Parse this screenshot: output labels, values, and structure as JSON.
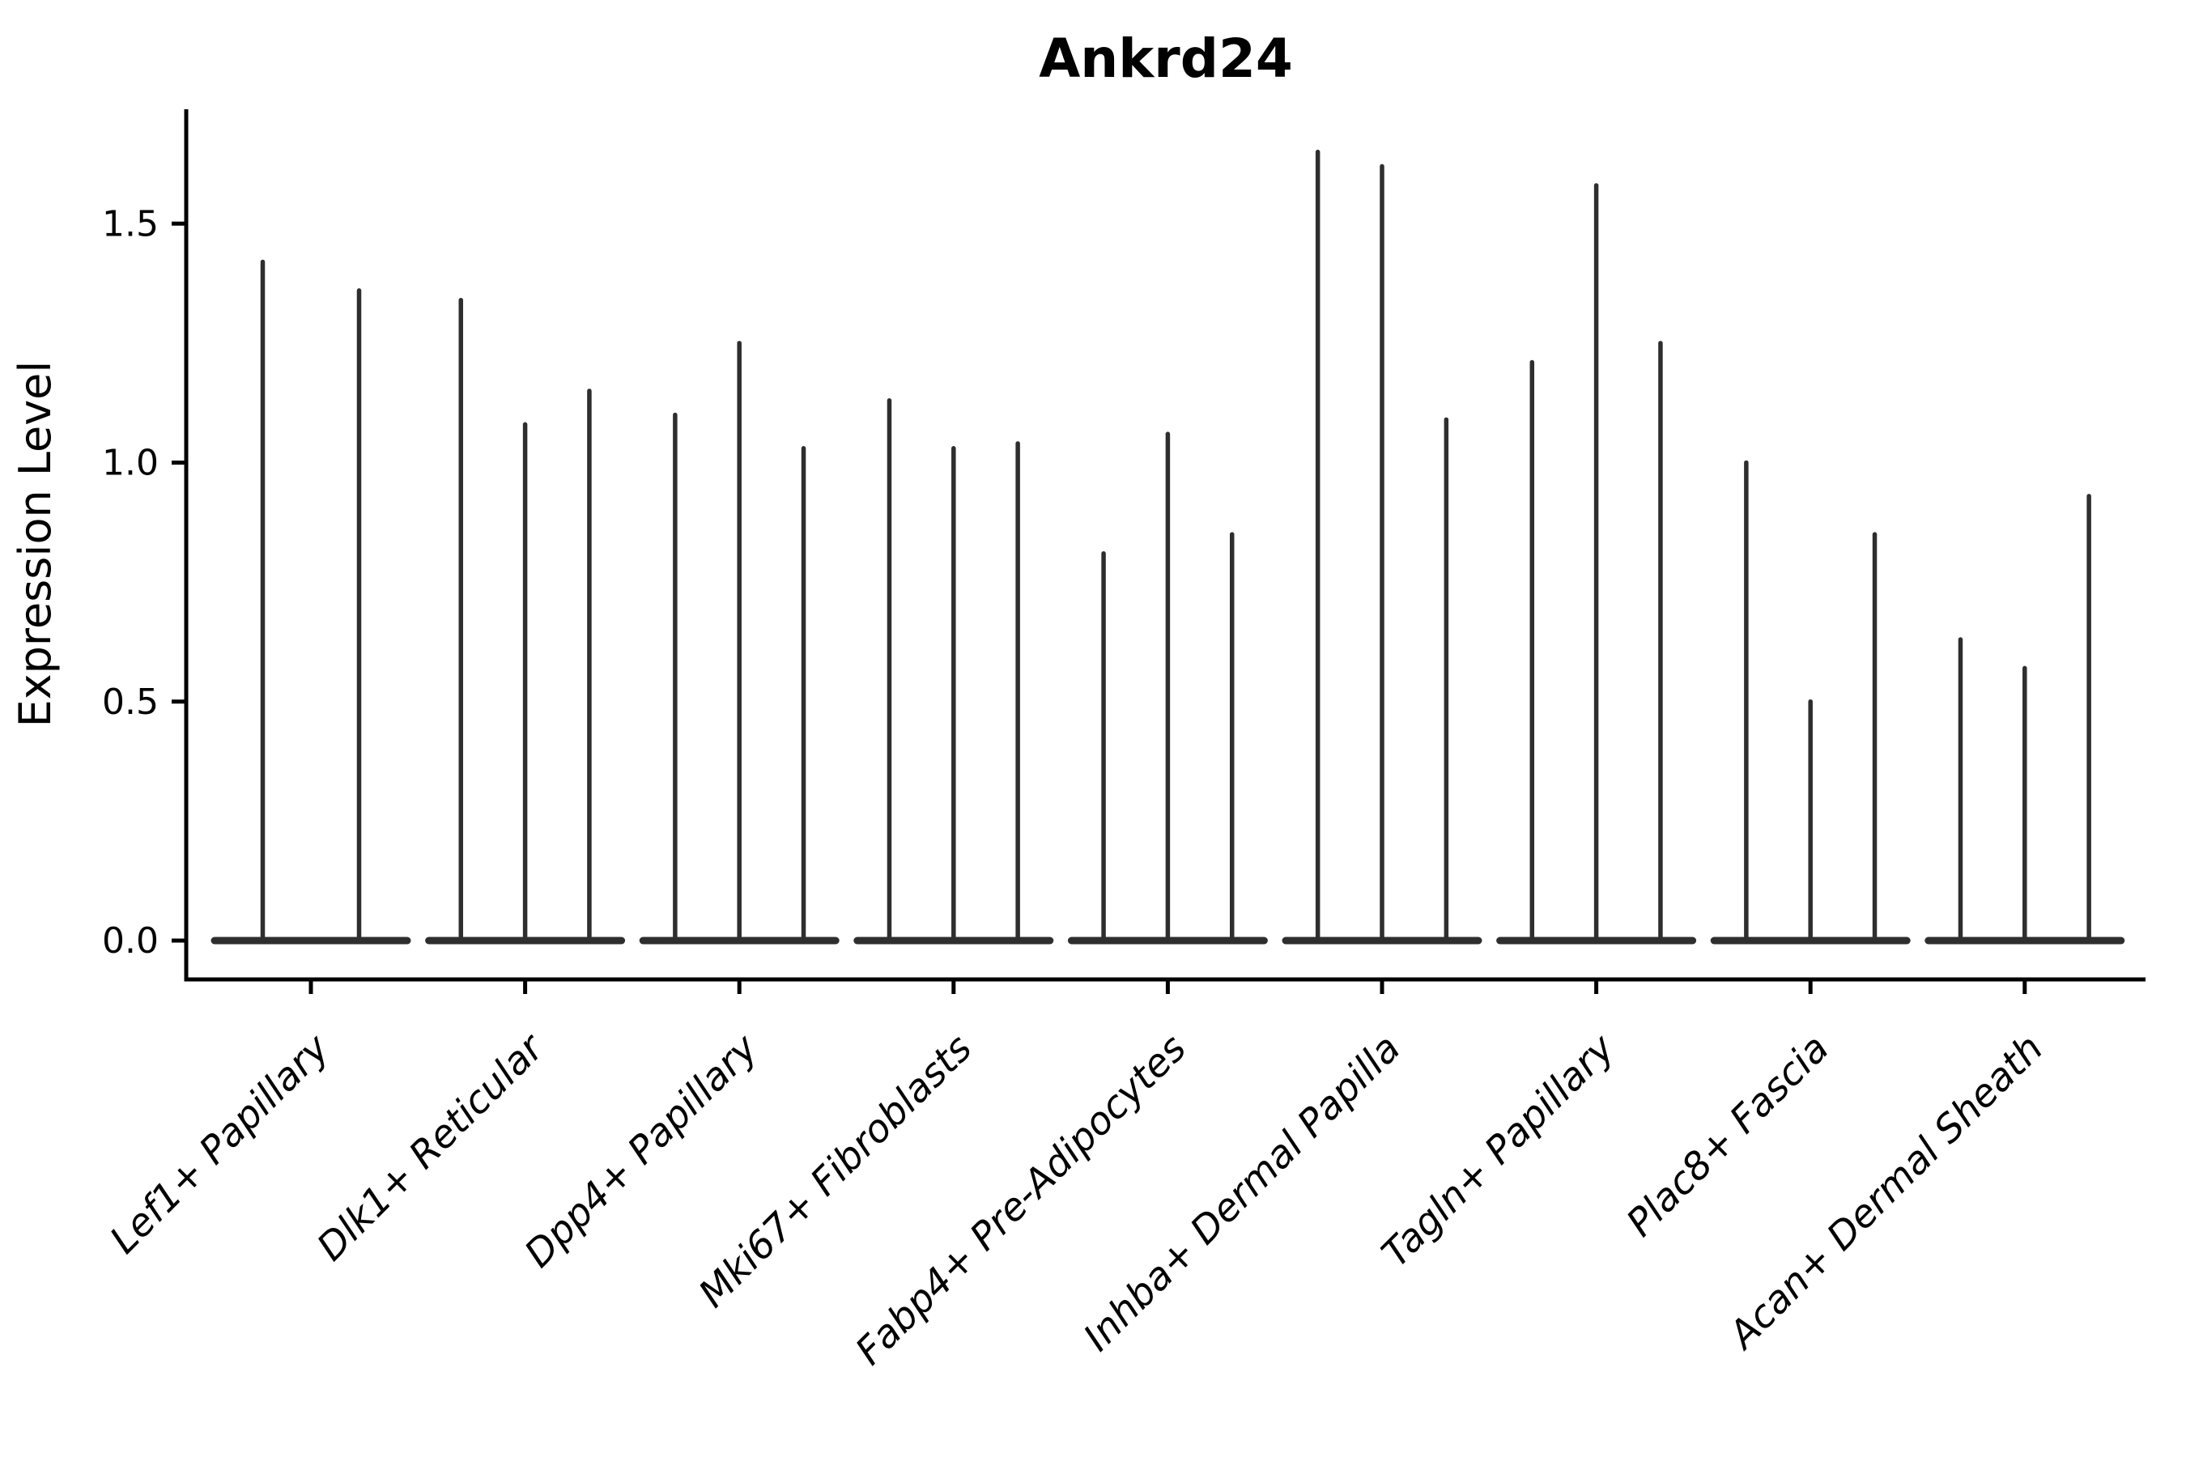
{
  "title": "Ankrd24",
  "ylabel": "Expression Level",
  "colors": {
    "violin_line": "#2e2e2e",
    "axis": "#000000",
    "text": "#000000",
    "background": "#ffffff"
  },
  "chart_data": {
    "type": "violin",
    "title": "Ankrd24",
    "xlabel": "",
    "ylabel": "Expression Level",
    "ylim": [
      -0.08,
      1.74
    ],
    "grid": false,
    "legend": "none",
    "y_ticks": [
      {
        "value": 0.0,
        "label": "0.0"
      },
      {
        "value": 0.5,
        "label": "0.5"
      },
      {
        "value": 1.0,
        "label": "1.0"
      },
      {
        "value": 1.5,
        "label": "1.5"
      }
    ],
    "x_tick_label_rotation_deg": 45,
    "x_tick_label_style": "italic",
    "violin_shape_note": "Each violin is a flat horizontal baseline at expression 0 with a thin vertical density spike at its center reaching the max expression value",
    "categories": [
      "Lef1+ Papillary",
      "Dlk1+ Reticular",
      "Dpp4+ Papillary",
      "Mki67+ Fibroblasts",
      "Fabp4+ Pre-Adipocytes",
      "Inhba+ Dermal Papilla",
      "Tagln+ Papillary",
      "Plac8+ Fascia",
      "Acan+ Dermal Sheath"
    ],
    "groups": [
      {
        "label": "Lef1+ Papillary",
        "spike_max_values": [
          1.42,
          1.36
        ]
      },
      {
        "label": "Dlk1+ Reticular",
        "spike_max_values": [
          1.34,
          1.08,
          1.15
        ]
      },
      {
        "label": "Dpp4+ Papillary",
        "spike_max_values": [
          1.1,
          1.25,
          1.03
        ]
      },
      {
        "label": "Mki67+ Fibroblasts",
        "spike_max_values": [
          1.13,
          1.03,
          1.04
        ]
      },
      {
        "label": "Fabp4+ Pre-Adipocytes",
        "spike_max_values": [
          0.81,
          1.06,
          0.85
        ]
      },
      {
        "label": "Inhba+ Dermal Papilla",
        "spike_max_values": [
          1.65,
          1.62,
          1.09
        ]
      },
      {
        "label": "Tagln+ Papillary",
        "spike_max_values": [
          1.21,
          1.58,
          1.25
        ]
      },
      {
        "label": "Plac8+ Fascia",
        "spike_max_values": [
          1.0,
          0.5,
          0.85
        ]
      },
      {
        "label": "Acan+ Dermal Sheath",
        "spike_max_values": [
          0.63,
          0.57,
          0.93
        ]
      }
    ]
  }
}
